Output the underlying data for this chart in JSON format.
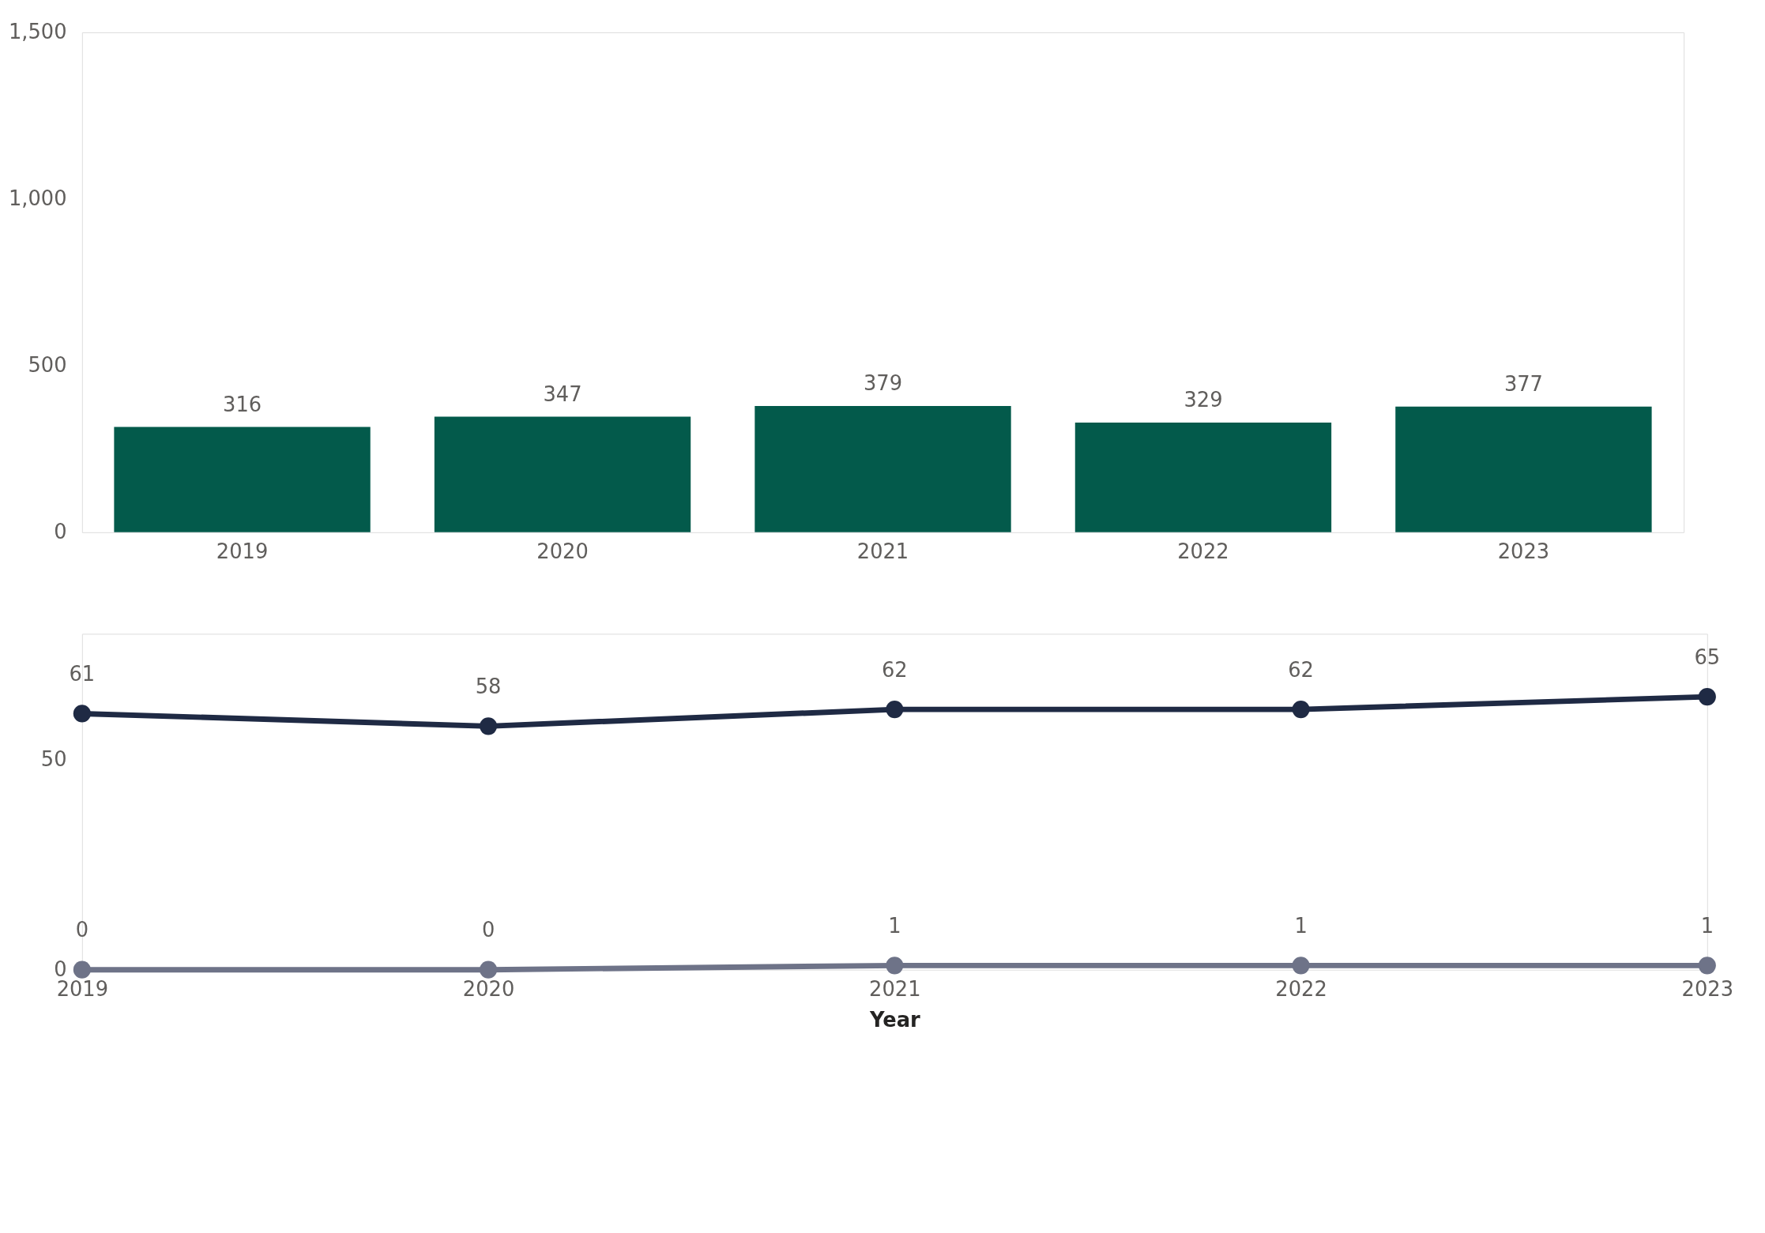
{
  "chart_data": [
    {
      "type": "bar",
      "categories": [
        "2019",
        "2020",
        "2021",
        "2022",
        "2023"
      ],
      "values": [
        316,
        347,
        379,
        329,
        377
      ],
      "color": "#035a4b",
      "ylim": [
        0,
        1500
      ],
      "yticks": [
        0,
        {
          "value": 500,
          "label": "500"
        },
        {
          "value": 1000,
          "label": "1,000"
        },
        {
          "value": 1500,
          "label": "1,500"
        }
      ],
      "data_labels": true,
      "grid": false
    },
    {
      "type": "line",
      "categories": [
        "2019",
        "2020",
        "2021",
        "2022",
        "2023"
      ],
      "xlabel": "Year",
      "series": [
        {
          "color": "#1f2a44",
          "values": [
            61,
            58,
            62,
            62,
            65
          ]
        },
        {
          "color": "#6e7388",
          "values": [
            0,
            0,
            1,
            1,
            1
          ]
        }
      ],
      "ylim": [
        0,
        80
      ],
      "yticks": [
        0,
        50
      ],
      "marker": "circle",
      "data_labels": true,
      "grid": false
    }
  ]
}
